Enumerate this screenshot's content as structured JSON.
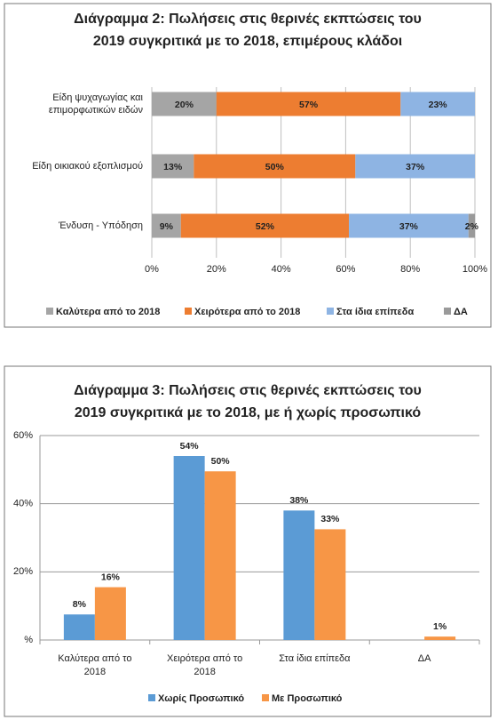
{
  "chart_data": [
    {
      "type": "bar",
      "horizontal": true,
      "stacked": true,
      "title": [
        "Διάγραμμα 2: Πωλήσεις στις θερινές εκπτώσεις του",
        "2019 συγκριτικά με το 2018, επιμέρους κλάδοι"
      ],
      "categories": [
        [
          "Είδη ψυχαγωγίας και",
          "επιμορφωτικών ειδών"
        ],
        [
          "Είδη οικιακού εξοπλισμού"
        ],
        [
          "Ένδυση - Υπόδηση"
        ]
      ],
      "series": [
        {
          "name": "Καλύτερα από το 2018",
          "color": "#a5a5a5",
          "values": [
            20,
            13,
            9
          ],
          "value_labels": [
            "20%",
            "13%",
            "9%"
          ]
        },
        {
          "name": "Χειρότερα από το 2018",
          "color": "#ed7d31",
          "values": [
            57,
            50,
            52
          ],
          "value_labels": [
            "57%",
            "50%",
            "52%"
          ]
        },
        {
          "name": "Στα ίδια επίπεδα",
          "color": "#8eb4e3",
          "values": [
            23,
            37,
            37
          ],
          "value_labels": [
            "23%",
            "37%",
            "37%"
          ]
        },
        {
          "name": "ΔΑ",
          "color": "#9a9a9a",
          "values": [
            0,
            0,
            2
          ],
          "value_labels": [
            null,
            null,
            "2%"
          ]
        }
      ],
      "xlim": [
        0,
        100
      ],
      "xticks": [
        {
          "value": 0,
          "label": "0%"
        },
        {
          "value": 20,
          "label": "20%"
        },
        {
          "value": 40,
          "label": "40%"
        },
        {
          "value": 60,
          "label": "60%"
        },
        {
          "value": 80,
          "label": "80%"
        },
        {
          "value": 100,
          "label": "100%"
        }
      ],
      "grid": true,
      "legend": "bottom"
    },
    {
      "type": "bar",
      "horizontal": false,
      "stacked": false,
      "title": [
        "Διάγραμμα 3: Πωλήσεις στις θερινές εκπτώσεις του",
        "2019 συγκριτικά με το 2018, με ή χωρίς προσωπικό"
      ],
      "categories": [
        [
          "Καλύτερα από το",
          "2018"
        ],
        [
          "Χειρότερα από το",
          "2018"
        ],
        [
          "Στα ίδια επίπεδα"
        ],
        [
          "ΔΑ"
        ]
      ],
      "series": [
        {
          "name": "Χωρίς Προσωπικό",
          "color": "#5b9bd5",
          "values": [
            7.5,
            54,
            38,
            null
          ],
          "value_labels": [
            "8%",
            "54%",
            "38%",
            null
          ]
        },
        {
          "name": "Με Προσωπικό",
          "color": "#f79646",
          "values": [
            15.5,
            49.5,
            32.5,
            1
          ],
          "value_labels": [
            "16%",
            "50%",
            "33%",
            "1%"
          ]
        }
      ],
      "ylim": [
        0,
        60
      ],
      "yticks": [
        {
          "value": 0,
          "label": "%"
        },
        {
          "value": 20,
          "label": "20%"
        },
        {
          "value": 40,
          "label": "40%"
        },
        {
          "value": 60,
          "label": "60%"
        }
      ],
      "grid": true,
      "legend": "bottom"
    }
  ]
}
